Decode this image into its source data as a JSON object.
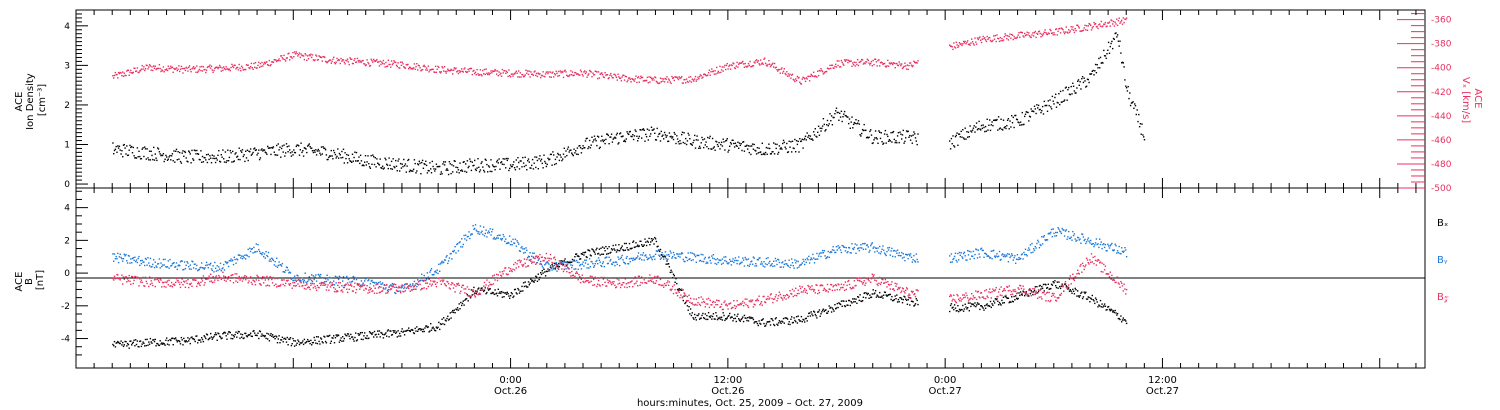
{
  "colors": {
    "black": "#000000",
    "pink": "#e8305f",
    "blue": "#1c78d8"
  },
  "chart_data": [
    {
      "type": "scatter",
      "panel": "top",
      "ylabel_left_lines": [
        "ACE",
        "Ion Density",
        "[cm⁻³]"
      ],
      "ylabel_right_lines": [
        "ACE",
        "Vₓ [km/s]"
      ],
      "ylim_left": [
        -0.1,
        4.4
      ],
      "ylim_right": [
        -500,
        -352
      ],
      "yticks_left": [
        0,
        1,
        2,
        3,
        4
      ],
      "yticks_right": [
        -500,
        -480,
        -460,
        -440,
        -420,
        -400,
        -380,
        -360
      ],
      "series": [
        {
          "axis": "left",
          "color": "black",
          "x": [
            -22,
            -20,
            -18,
            -16,
            -14,
            -12,
            -10,
            -8,
            -6,
            -4,
            -2,
            0,
            2,
            4,
            6,
            8,
            10,
            12,
            14,
            16,
            18,
            20,
            22,
            24,
            26,
            28,
            30,
            32,
            33.5,
            34,
            35
          ],
          "y": [
            0.9,
            0.8,
            0.7,
            0.7,
            0.8,
            0.9,
            0.8,
            0.6,
            0.5,
            0.4,
            0.5,
            0.5,
            0.6,
            1.0,
            1.2,
            1.3,
            1.1,
            1.0,
            0.9,
            1.0,
            1.8,
            1.2,
            1.2,
            1.0,
            1.5,
            1.6,
            2.1,
            2.7,
            3.8,
            2.4,
            1.2
          ]
        },
        {
          "axis": "right",
          "color": "pink",
          "x": [
            -22,
            -20,
            -18,
            -16,
            -14,
            -12,
            -10,
            -8,
            -6,
            -4,
            -2,
            0,
            2,
            4,
            6,
            8,
            10,
            12,
            14,
            16,
            18,
            20,
            22,
            24,
            26,
            28,
            30,
            32,
            34
          ],
          "y": [
            -407,
            -399,
            -401,
            -400,
            -398,
            -389,
            -393,
            -395,
            -397,
            -401,
            -403,
            -404,
            -405,
            -404,
            -408,
            -410,
            -409,
            -398,
            -394,
            -411,
            -396,
            -395,
            -398,
            -383,
            -376,
            -373,
            -370,
            -365,
            -360
          ]
        }
      ]
    },
    {
      "type": "scatter",
      "panel": "bottom",
      "ylabel_lines": [
        "ACE",
        "B",
        "[nT]"
      ],
      "ylim": [
        -5.8,
        5.2
      ],
      "yticks": [
        -4,
        -2,
        0,
        2,
        4
      ],
      "legend": [
        "Bₓ",
        "Bᵧ",
        "B𝓏"
      ],
      "series": [
        {
          "name": "Bₓ",
          "color": "black",
          "x": [
            -22,
            -20,
            -18,
            -16,
            -14,
            -12,
            -10,
            -8,
            -6,
            -4,
            -2,
            0,
            2,
            4,
            6,
            8,
            10,
            12,
            14,
            16,
            18,
            20,
            22,
            24,
            26,
            28,
            30,
            32,
            34
          ],
          "y": [
            -4.4,
            -4.2,
            -4.1,
            -3.8,
            -3.7,
            -4.2,
            -4.0,
            -3.8,
            -3.6,
            -3.2,
            -1.0,
            -1.3,
            0.2,
            1.2,
            1.6,
            2.0,
            -2.6,
            -2.6,
            -3.0,
            -2.8,
            -2.0,
            -1.2,
            -1.7,
            -2.1,
            -2.0,
            -1.4,
            -0.6,
            -1.5,
            -2.9
          ]
        },
        {
          "name": "Bᵧ",
          "color": "blue",
          "x": [
            -22,
            -20,
            -18,
            -16,
            -14,
            -12,
            -10,
            -8,
            -6,
            -4,
            -2,
            0,
            2,
            4,
            6,
            8,
            10,
            12,
            14,
            16,
            18,
            20,
            22,
            24,
            26,
            28,
            30,
            32,
            34
          ],
          "y": [
            1.0,
            0.7,
            0.5,
            0.4,
            1.6,
            -0.2,
            -0.4,
            -0.5,
            -1.0,
            0.3,
            2.8,
            2.0,
            0.4,
            0.6,
            0.8,
            1.2,
            1.0,
            0.8,
            0.7,
            0.6,
            1.5,
            1.6,
            1.0,
            0.9,
            1.3,
            0.9,
            2.6,
            2.0,
            1.3
          ]
        },
        {
          "name": "B𝓏",
          "color": "pink",
          "x": [
            -22,
            -20,
            -18,
            -16,
            -14,
            -12,
            -10,
            -8,
            -6,
            -4,
            -2,
            0,
            2,
            4,
            6,
            8,
            10,
            12,
            14,
            16,
            18,
            20,
            22,
            24,
            26,
            28,
            30,
            32,
            34
          ],
          "y": [
            -0.3,
            -0.5,
            -0.6,
            -0.2,
            -0.4,
            -0.6,
            -0.8,
            -0.9,
            -0.9,
            -0.5,
            -1.2,
            0.4,
            1.0,
            -0.4,
            -0.6,
            -0.3,
            -1.6,
            -2.0,
            -1.6,
            -1.0,
            -0.9,
            -0.3,
            -1.2,
            -1.6,
            -1.3,
            -0.9,
            -1.5,
            1.0,
            -1.0
          ]
        }
      ]
    }
  ],
  "x_axis": {
    "ticks": [
      {
        "t": 0,
        "time": "0:00",
        "date": "Oct.26"
      },
      {
        "t": 12,
        "time": "12:00",
        "date": "Oct.26"
      },
      {
        "t": 24,
        "time": "0:00",
        "date": "Oct.27"
      },
      {
        "t": 36,
        "time": "12:00",
        "date": "Oct.27"
      }
    ],
    "label": "hours:minutes, Oct. 25, 2009 – Oct. 27, 2009",
    "range_hours": [
      -24,
      50.5
    ]
  }
}
